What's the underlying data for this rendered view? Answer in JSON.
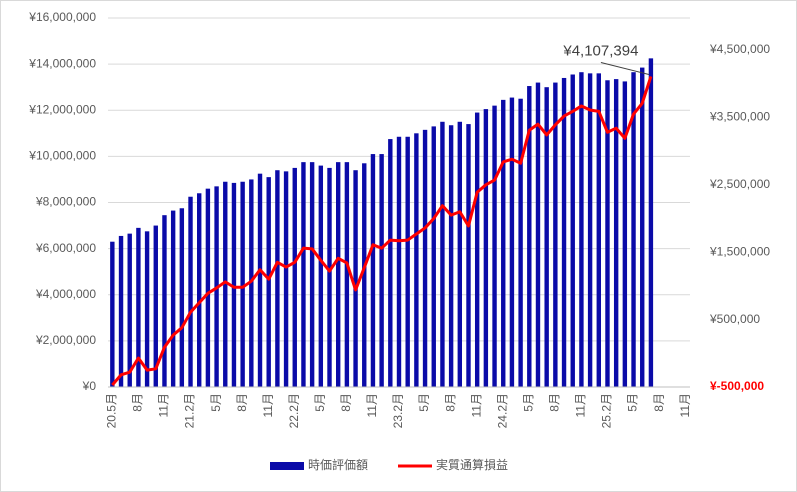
{
  "chart_data": {
    "type": "bar_line",
    "categories": [
      "20.5月",
      null,
      null,
      "8月",
      null,
      null,
      "11月",
      null,
      null,
      "21.2月",
      null,
      null,
      "5月",
      null,
      null,
      "8月",
      null,
      null,
      "11月",
      null,
      null,
      "22.2月",
      null,
      null,
      "5月",
      null,
      null,
      "8月",
      null,
      null,
      "11月",
      null,
      null,
      "23.2月",
      null,
      null,
      "5月",
      null,
      null,
      "8月",
      null,
      null,
      "11月",
      null,
      null,
      "24.2月",
      null,
      null,
      "5月",
      null,
      null,
      "8月",
      null,
      null,
      "11月",
      null,
      null,
      "25.2月",
      null,
      null,
      "5月",
      null,
      null,
      "8月",
      null,
      null,
      "11月"
    ],
    "series": [
      {
        "name": "時価評価額",
        "color": "#0a0aa8",
        "type": "bar",
        "values": [
          6300000,
          6550000,
          6650000,
          6900000,
          6750000,
          7000000,
          7450000,
          7650000,
          7750000,
          8250000,
          8400000,
          8600000,
          8700000,
          8900000,
          8850000,
          8900000,
          9000000,
          9250000,
          9100000,
          9400000,
          9350000,
          9500000,
          9750000,
          9750000,
          9600000,
          9500000,
          9750000,
          9750000,
          9400000,
          9700000,
          10100000,
          10100000,
          10750000,
          10850000,
          10850000,
          11000000,
          11150000,
          11300000,
          11500000,
          11350000,
          11500000,
          11400000,
          11900000,
          12050000,
          12200000,
          12450000,
          12550000,
          12500000,
          13050000,
          13200000,
          13000000,
          13200000,
          13400000,
          13550000,
          13650000,
          13600000,
          13600000,
          13300000,
          13350000,
          13250000,
          13650000,
          13850000,
          14250000,
          null,
          null,
          null,
          null
        ]
      },
      {
        "name": "実質通算損益",
        "color": "#ff0000",
        "type": "line",
        "axis": "y2",
        "values": [
          -470000,
          -320000,
          -280000,
          -70000,
          -250000,
          -230000,
          90000,
          270000,
          380000,
          610000,
          750000,
          890000,
          970000,
          1060000,
          980000,
          980000,
          1070000,
          1240000,
          1100000,
          1350000,
          1280000,
          1350000,
          1560000,
          1550000,
          1380000,
          1220000,
          1410000,
          1340000,
          940000,
          1270000,
          1610000,
          1560000,
          1680000,
          1670000,
          1680000,
          1770000,
          1860000,
          2000000,
          2190000,
          2050000,
          2100000,
          1890000,
          2390000,
          2500000,
          2570000,
          2840000,
          2880000,
          2820000,
          3310000,
          3400000,
          3240000,
          3390000,
          3520000,
          3590000,
          3670000,
          3610000,
          3590000,
          3280000,
          3340000,
          3190000,
          3550000,
          3710000,
          4107394,
          null,
          null,
          null,
          null
        ],
        "value_labels": [
          null,
          null,
          null,
          null,
          null,
          null,
          null,
          null,
          null,
          null,
          null,
          null,
          null,
          null,
          null,
          null,
          null,
          null,
          null,
          null,
          null,
          null,
          null,
          null,
          null,
          null,
          null,
          null,
          null,
          null,
          null,
          null,
          null,
          null,
          null,
          null,
          null,
          null,
          null,
          null,
          null,
          null,
          null,
          null,
          null,
          null,
          null,
          null,
          null,
          null,
          null,
          null,
          null,
          null,
          null,
          null,
          null,
          null,
          null,
          null,
          null,
          null,
          "¥4,107,394",
          null,
          null,
          null,
          null
        ]
      }
    ],
    "ylim": [
      0,
      16000000
    ],
    "yticks": [
      {
        "value": 0,
        "label": "¥0"
      },
      {
        "value": 2000000,
        "label": "¥2,000,000"
      },
      {
        "value": 4000000,
        "label": "¥4,000,000"
      },
      {
        "value": 6000000,
        "label": "¥6,000,000"
      },
      {
        "value": 8000000,
        "label": "¥8,000,000"
      },
      {
        "value": 10000000,
        "label": "¥10,000,000"
      },
      {
        "value": 12000000,
        "label": "¥12,000,000"
      },
      {
        "value": 14000000,
        "label": "¥14,000,000"
      },
      {
        "value": 16000000,
        "label": "¥16,000,000"
      }
    ],
    "y2lim": [
      -500000,
      4975000
    ],
    "y2ticks": [
      {
        "value": -500000,
        "label": "¥-500,000"
      },
      {
        "value": 500000,
        "label": "¥500,000"
      },
      {
        "value": 1500000,
        "label": "¥1,500,000"
      },
      {
        "value": 2500000,
        "label": "¥2,500,000"
      },
      {
        "value": 3500000,
        "label": "¥3,500,000"
      },
      {
        "value": 4500000,
        "label": "¥4,500,000"
      }
    ],
    "grid": true,
    "legend": "bottom"
  }
}
